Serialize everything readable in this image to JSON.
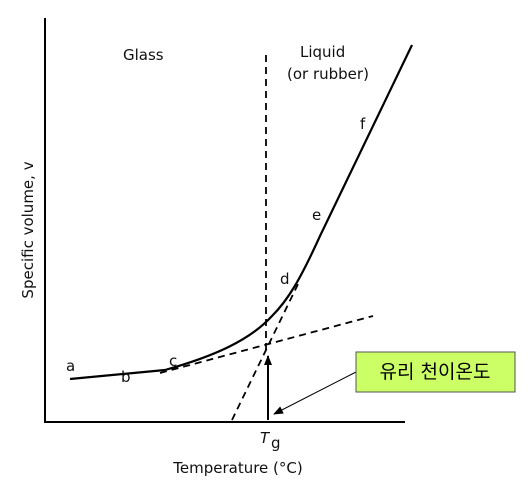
{
  "regions": {
    "glass": "Glass",
    "liquid": "Liquid",
    "liquid_note": "(or rubber)"
  },
  "axes": {
    "y_label": "Specific volume, v",
    "x_label": "Temperature (°C)"
  },
  "points": [
    "a",
    "b",
    "c",
    "d",
    "e",
    "f"
  ],
  "tg": {
    "symbol": "T",
    "subscript": "g"
  },
  "callout": "유리 천이온도"
}
